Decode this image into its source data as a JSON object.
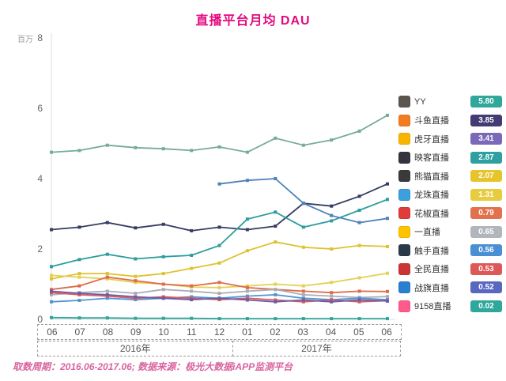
{
  "title": "直播平台月均 DAU",
  "footer": "取数周期：2016.06-2017.06; 数据来源：极光大数据iAPP监测平台",
  "y_axis": {
    "unit": "百万"
  },
  "chart_data": {
    "type": "line",
    "title": "直播平台月均 DAU",
    "xlabel": "",
    "ylabel": "百万",
    "ylim": [
      0,
      8
    ],
    "yticks": [
      0,
      2,
      4,
      6,
      8
    ],
    "grid": false,
    "legend_position": "right",
    "categories": [
      "06",
      "07",
      "08",
      "09",
      "10",
      "11",
      "12",
      "01",
      "02",
      "03",
      "04",
      "05",
      "06"
    ],
    "x_groups": [
      {
        "label": "2016年",
        "span": 7
      },
      {
        "label": "2017年",
        "span": 6
      }
    ],
    "series": [
      {
        "name": "YY",
        "color": "#76ab9c",
        "values": [
          4.75,
          4.8,
          4.95,
          4.88,
          4.85,
          4.8,
          4.9,
          4.75,
          5.15,
          4.95,
          5.1,
          5.35,
          5.8
        ]
      },
      {
        "name": "斗鱼直播",
        "color": "#363c63",
        "values": [
          2.55,
          2.62,
          2.75,
          2.6,
          2.7,
          2.52,
          2.62,
          2.55,
          2.65,
          3.3,
          3.22,
          3.5,
          3.85
        ]
      },
      {
        "name": "虎牙直播",
        "color": "#2e9d9d",
        "values": [
          1.5,
          1.7,
          1.85,
          1.72,
          1.78,
          1.82,
          2.1,
          2.85,
          3.05,
          2.62,
          2.8,
          3.1,
          3.41
        ]
      },
      {
        "name": "映客直播",
        "color": "#4d82b8",
        "values": [
          null,
          null,
          null,
          null,
          null,
          null,
          3.85,
          3.95,
          4.0,
          3.3,
          2.95,
          2.75,
          2.87
        ]
      },
      {
        "name": "熊猫直播",
        "color": "#dfc22e",
        "values": [
          1.15,
          1.3,
          1.3,
          1.22,
          1.3,
          1.45,
          1.6,
          1.95,
          2.2,
          2.05,
          2.0,
          2.1,
          2.07
        ]
      },
      {
        "name": "龙珠直播",
        "color": "#e6d055",
        "values": [
          1.25,
          1.2,
          1.15,
          1.05,
          1.0,
          0.92,
          0.9,
          0.95,
          1.0,
          0.95,
          1.05,
          1.18,
          1.31
        ]
      },
      {
        "name": "花椒直播",
        "color": "#de6b4c",
        "values": [
          0.85,
          0.95,
          1.2,
          1.1,
          1.0,
          0.95,
          1.05,
          0.9,
          0.85,
          0.8,
          0.76,
          0.8,
          0.79
        ]
      },
      {
        "name": "一直播",
        "color": "#a9aeb4",
        "values": [
          0.7,
          0.76,
          0.8,
          0.74,
          0.85,
          0.8,
          0.74,
          0.8,
          0.85,
          0.7,
          0.66,
          0.62,
          0.65
        ]
      },
      {
        "name": "触手直播",
        "color": "#5493d2",
        "values": [
          0.5,
          0.54,
          0.6,
          0.56,
          0.6,
          0.64,
          0.6,
          0.66,
          0.7,
          0.6,
          0.56,
          0.6,
          0.56
        ]
      },
      {
        "name": "全民直播",
        "color": "#dd5a5a",
        "values": [
          0.76,
          0.7,
          0.66,
          0.6,
          0.64,
          0.6,
          0.56,
          0.6,
          0.55,
          0.5,
          0.55,
          0.5,
          0.53
        ]
      },
      {
        "name": "战旗直播",
        "color": "#6a5ca8",
        "values": [
          0.8,
          0.74,
          0.7,
          0.64,
          0.6,
          0.56,
          0.6,
          0.55,
          0.5,
          0.55,
          0.5,
          0.55,
          0.52
        ]
      },
      {
        "name": "9158直播",
        "color": "#2fa79b",
        "values": [
          0.05,
          0.04,
          0.04,
          0.03,
          0.03,
          0.03,
          0.02,
          0.02,
          0.02,
          0.02,
          0.02,
          0.02,
          0.02
        ]
      }
    ]
  },
  "legend": {
    "items": [
      {
        "label": "YY",
        "value": "5.80",
        "badge_color": "#2fa79b",
        "icon": "yy-app-icon",
        "icon_color": "#5b5550"
      },
      {
        "label": "斗鱼直播",
        "value": "3.85",
        "badge_color": "#433c72",
        "icon": "douyu-app-icon",
        "icon_color": "#f47c20"
      },
      {
        "label": "虎牙直播",
        "value": "3.41",
        "badge_color": "#7a68b8",
        "icon": "huya-app-icon",
        "icon_color": "#f8b500"
      },
      {
        "label": "映客直播",
        "value": "2.87",
        "badge_color": "#2f9f9f",
        "icon": "inke-app-icon",
        "icon_color": "#33343d"
      },
      {
        "label": "熊猫直播",
        "value": "2.07",
        "badge_color": "#e5c42e",
        "icon": "panda-app-icon",
        "icon_color": "#3a3a3a"
      },
      {
        "label": "龙珠直播",
        "value": "1.31",
        "badge_color": "#e8cc3f",
        "icon": "longzhu-app-icon",
        "icon_color": "#3aa0e0"
      },
      {
        "label": "花椒直播",
        "value": "0.79",
        "badge_color": "#e2714d",
        "icon": "huajiao-app-icon",
        "icon_color": "#e03c3c"
      },
      {
        "label": "一直播",
        "value": "0.65",
        "badge_color": "#b0b6bc",
        "icon": "yizhibo-app-icon",
        "icon_color": "#ffc400"
      },
      {
        "label": "触手直播",
        "value": "0.56",
        "badge_color": "#4a8fd4",
        "icon": "chushou-app-icon",
        "icon_color": "#2b3a4a"
      },
      {
        "label": "全民直播",
        "value": "0.53",
        "badge_color": "#df5858",
        "icon": "quanmin-app-icon",
        "icon_color": "#cc3333"
      },
      {
        "label": "战旗直播",
        "value": "0.52",
        "badge_color": "#5868c0",
        "icon": "zhanqi-app-icon",
        "icon_color": "#2b7fd0"
      },
      {
        "label": "9158直播",
        "value": "0.02",
        "badge_color": "#2fa79b",
        "icon": "9158-app-icon",
        "icon_color": "#ff5a8c"
      }
    ]
  }
}
